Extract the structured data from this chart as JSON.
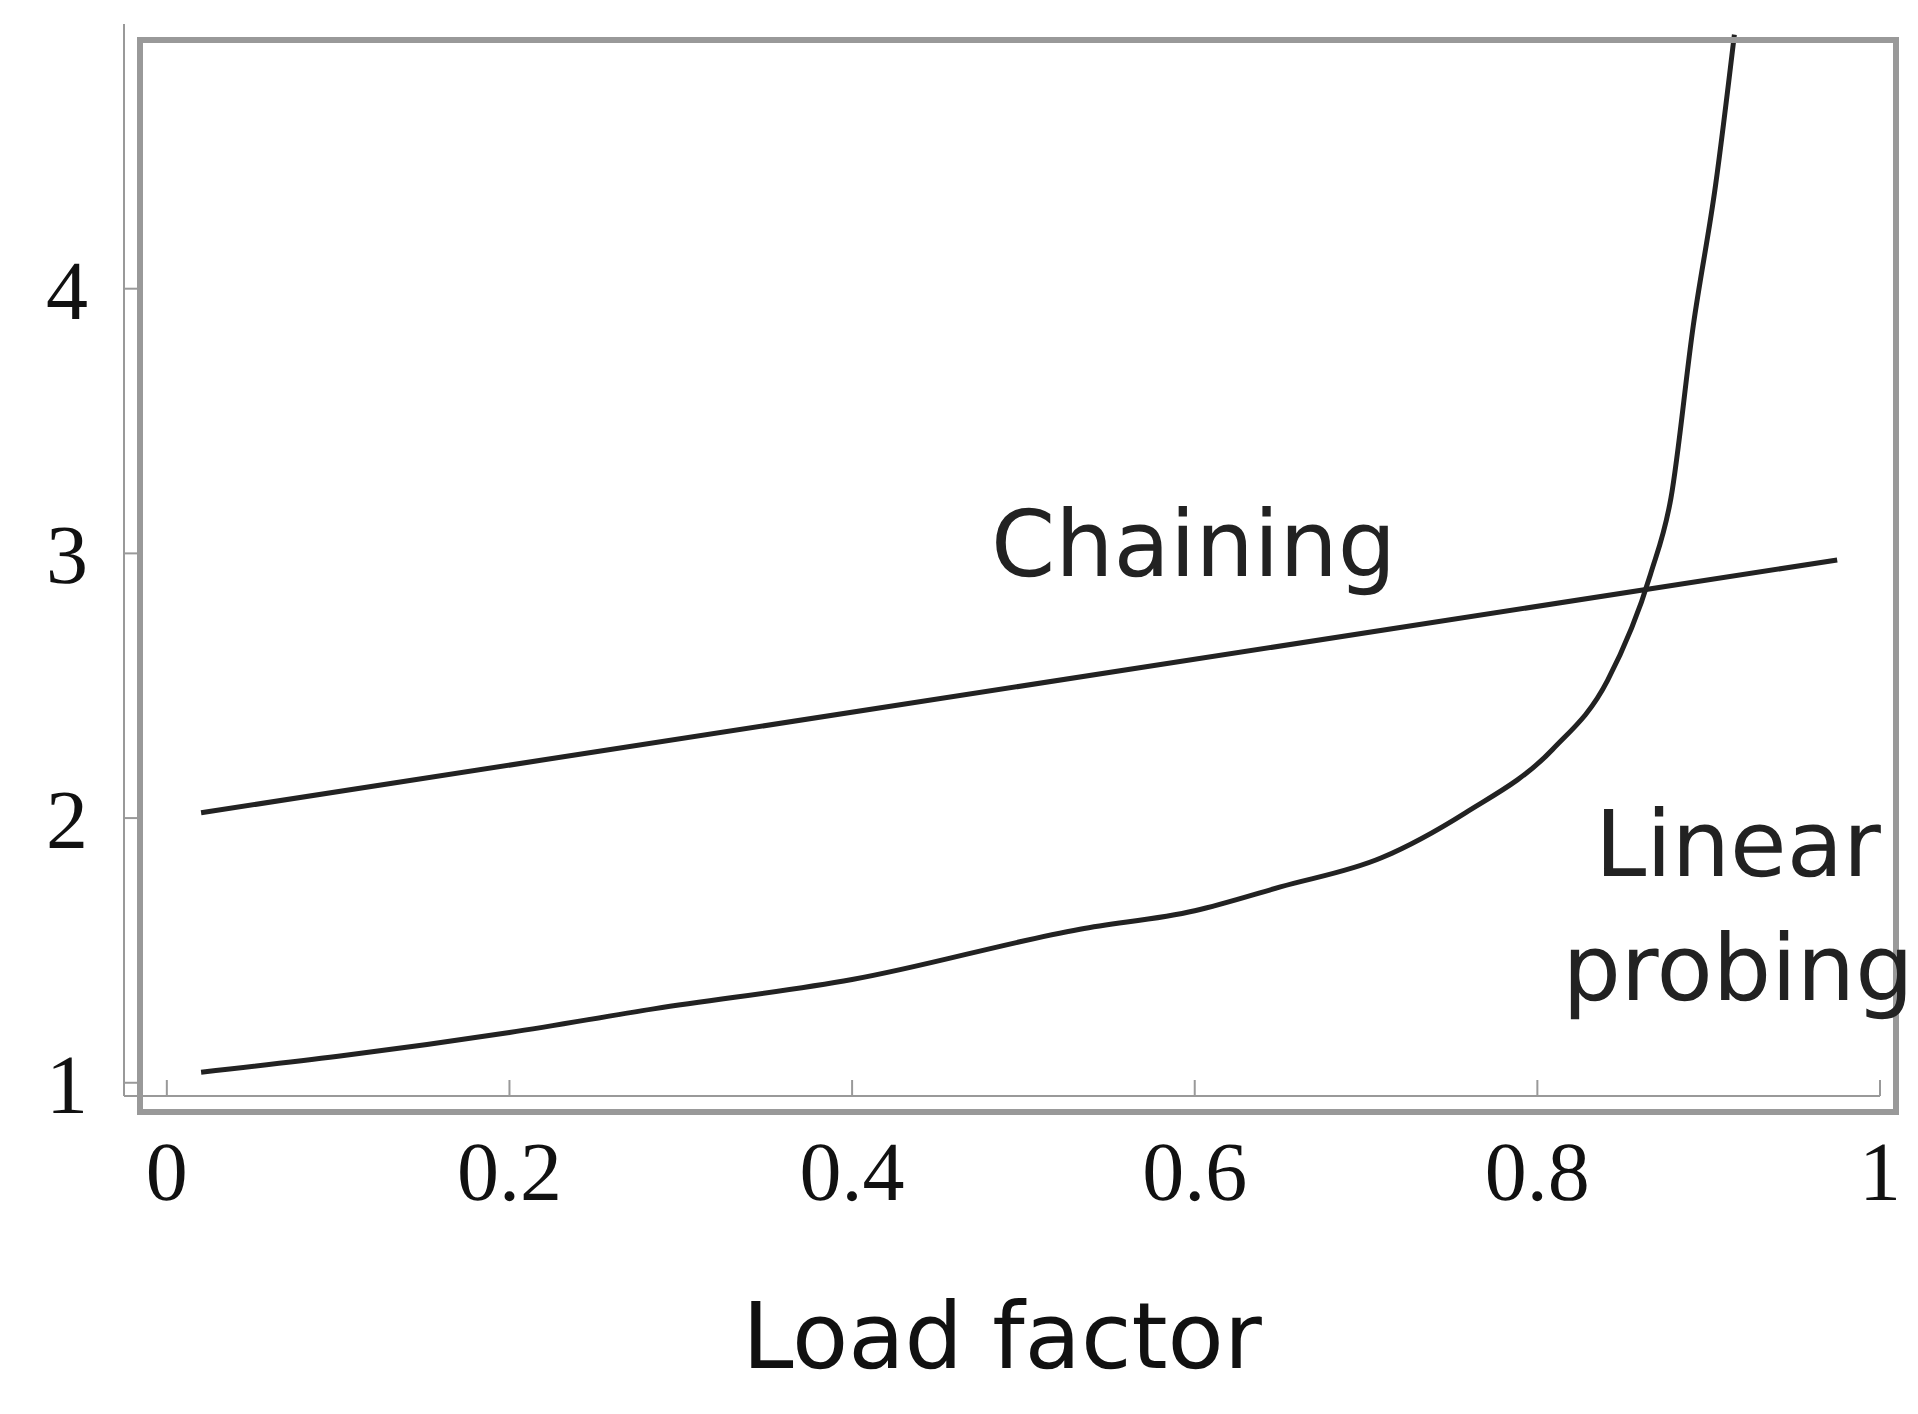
{
  "chart_data": {
    "type": "line",
    "xlabel": "Load factor",
    "xlim": [
      -0.025,
      1.0
    ],
    "xticks": [
      0,
      0.2,
      0.4,
      0.6,
      0.8,
      1
    ],
    "ylim": [
      0.95,
      5
    ],
    "yticks": [
      1,
      2,
      3,
      4
    ],
    "marker": "none",
    "line_style": "solid",
    "series": [
      {
        "name": "Chaining",
        "color": "#222222",
        "x": [
          0.02,
          0.975
        ],
        "values": [
          2.02,
          2.975
        ]
      },
      {
        "name": "Linear probing",
        "color": "#222222",
        "x": [
          0.02,
          0.1,
          0.2,
          0.285,
          0.4,
          0.533,
          0.6,
          0.65,
          0.709,
          0.758,
          0.809,
          0.841,
          0.866,
          0.878,
          0.891,
          0.904,
          0.915
        ],
        "values": [
          1.04,
          1.1,
          1.19,
          1.28,
          1.39,
          1.58,
          1.65,
          1.74,
          1.85,
          2.02,
          2.26,
          2.52,
          2.92,
          3.21,
          3.86,
          4.39,
          4.96
        ]
      }
    ]
  }
}
